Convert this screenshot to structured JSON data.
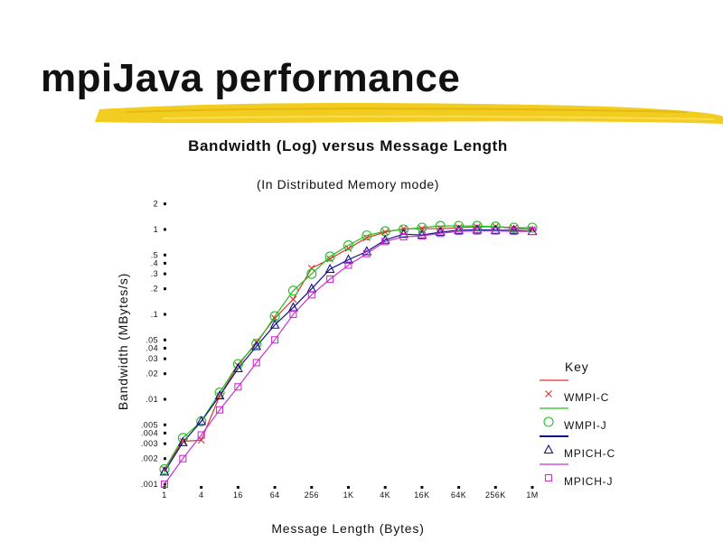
{
  "slide": {
    "title": "mpiJava performance"
  },
  "chart_data": {
    "type": "line",
    "title": "Bandwidth (Log) versus Message Length",
    "subtitle": "(In Distributed Memory mode)",
    "xlabel": "Message Length (Bytes)",
    "ylabel": "Bandwidth (MBytes/s)",
    "x_scale": "log",
    "y_scale": "log",
    "ylim": [
      0.001,
      2
    ],
    "x_tick_labels": [
      "1",
      "4",
      "16",
      "64",
      "256",
      "1K",
      "4K",
      "16K",
      "64K",
      "256K",
      "1M"
    ],
    "y_tick_labels": [
      "2",
      "1",
      ".5",
      ".4",
      ".3",
      ".2",
      ".1",
      ".05",
      ".04",
      ".03",
      ".02",
      ".01",
      ".005",
      ".004",
      ".003",
      ".002",
      ".001"
    ],
    "x": [
      1,
      2,
      4,
      8,
      16,
      32,
      64,
      128,
      256,
      512,
      1024,
      2048,
      4096,
      8192,
      16384,
      32768,
      65536,
      131072,
      262144,
      524288,
      1048576
    ],
    "legend_title": "Key",
    "legend_position": "right",
    "series": [
      {
        "name": "WMPI-C",
        "color": "#e03030",
        "marker": "x",
        "values": [
          0.0015,
          0.0032,
          0.0033,
          0.011,
          0.025,
          0.047,
          0.09,
          0.15,
          0.35,
          0.45,
          0.6,
          0.8,
          0.93,
          1.02,
          1.02,
          1.02,
          1.05,
          1.07,
          1.08,
          1.03,
          1.0
        ]
      },
      {
        "name": "WMPI-J",
        "color": "#20c020",
        "marker": "circle",
        "values": [
          0.0015,
          0.0035,
          0.0055,
          0.012,
          0.026,
          0.045,
          0.095,
          0.19,
          0.3,
          0.48,
          0.65,
          0.85,
          0.95,
          1.0,
          1.05,
          1.1,
          1.1,
          1.1,
          1.08,
          1.05,
          1.05
        ]
      },
      {
        "name": "MPICH-C",
        "color": "#10108c",
        "marker": "triangle",
        "values": [
          0.0014,
          0.0031,
          0.0055,
          0.011,
          0.023,
          0.042,
          0.075,
          0.12,
          0.2,
          0.34,
          0.44,
          0.55,
          0.75,
          0.88,
          0.86,
          0.93,
          0.98,
          0.99,
          0.98,
          0.98,
          0.95
        ]
      },
      {
        "name": "MPICH-J",
        "color": "#cc30cc",
        "marker": "square",
        "values": [
          0.001,
          0.002,
          0.0038,
          0.0075,
          0.014,
          0.027,
          0.05,
          0.1,
          0.17,
          0.26,
          0.38,
          0.52,
          0.72,
          0.82,
          0.84,
          0.9,
          0.95,
          0.96,
          0.96,
          0.95,
          0.95
        ]
      }
    ]
  }
}
